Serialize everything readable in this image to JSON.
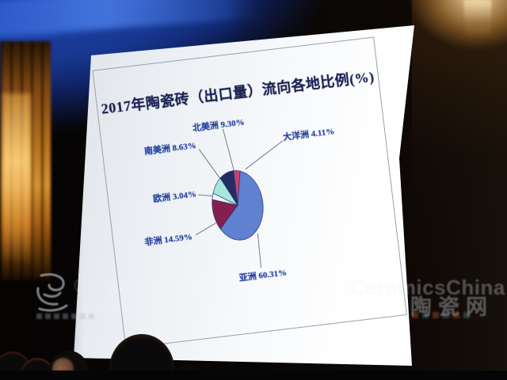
{
  "chart_data": {
    "type": "pie",
    "title": "2017年陶瓷砖（出口量）流向各地比例(%)",
    "unit": "%",
    "direction": "clockwise",
    "start_angle_deg": 0,
    "legend": "none",
    "label_style": "callout-lines",
    "slices": [
      {
        "name": "大洋洲",
        "value": 4.11,
        "label": "大洋洲 4.11%",
        "color": "#c8426b"
      },
      {
        "name": "亚洲",
        "value": 60.31,
        "label": "亚洲 60.31%",
        "color": "#5f81d0"
      },
      {
        "name": "非洲",
        "value": 14.59,
        "label": "非洲 14.59%",
        "color": "#83204f"
      },
      {
        "name": "欧洲",
        "value": 3.04,
        "label": "欧洲 3.04%",
        "color": "#eef4f2"
      },
      {
        "name": "南美洲",
        "value": 8.63,
        "label": "南美洲 8.63%",
        "color": "#a6e9dc"
      },
      {
        "name": "北美洲",
        "value": 9.3,
        "label": "北美洲 9.30%",
        "color": "#252c66"
      }
    ],
    "outline_color": "#2a3270"
  },
  "watermark": {
    "brand_en": "CeramicsChina",
    "brand_cn": "陶瓷网"
  }
}
